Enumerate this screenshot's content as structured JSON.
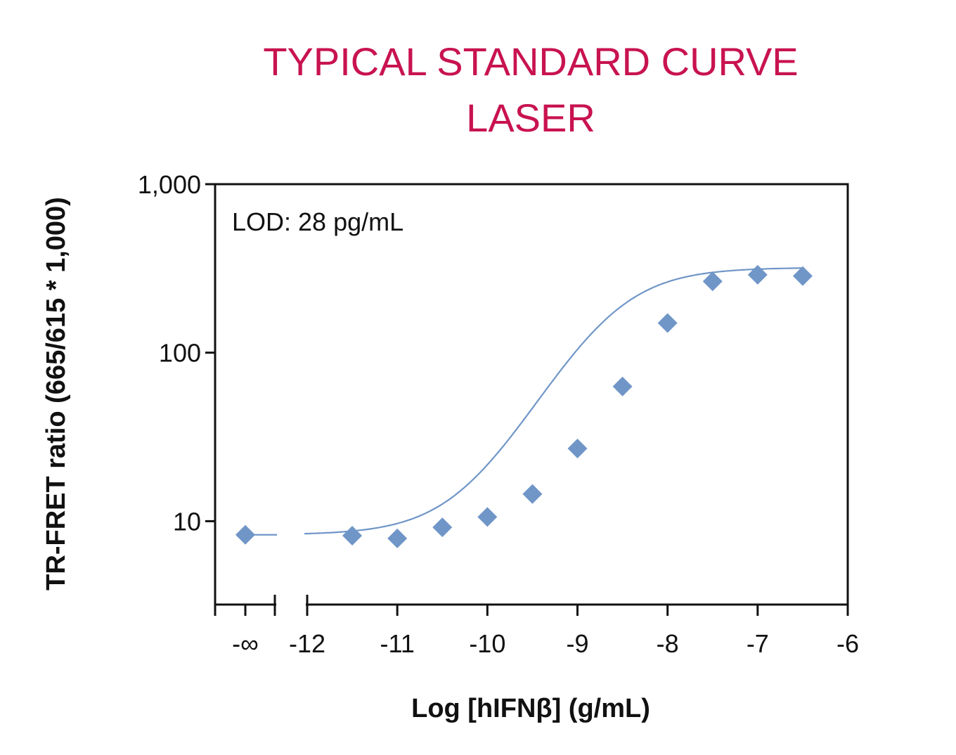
{
  "chart_data": {
    "type": "scatter",
    "title_line1": "TYPICAL STANDARD CURVE",
    "title_line2": "LASER",
    "xlabel": "Log [hIFNβ] (g/mL)",
    "ylabel": "TR-FRET ratio (665/615 * 1,000)",
    "annotation": "LOD: 28 pg/mL",
    "yscale": "log",
    "ylim": [
      3.2,
      1000
    ],
    "xlim": [
      -12.35,
      -6
    ],
    "y_ticks": [
      {
        "value": 10,
        "label": "10"
      },
      {
        "value": 100,
        "label": "100"
      },
      {
        "value": 1000,
        "label": "1,000"
      }
    ],
    "x_ticks": [
      {
        "value": -12,
        "label": "-12"
      },
      {
        "value": -11,
        "label": "-11"
      },
      {
        "value": -10,
        "label": "-10"
      },
      {
        "value": -9,
        "label": "-9"
      },
      {
        "value": -8,
        "label": "-8"
      },
      {
        "value": -7,
        "label": "-7"
      },
      {
        "value": -6,
        "label": "-6"
      }
    ],
    "neg_inf_label": "-∞",
    "neg_inf_point": 8.3,
    "points": [
      {
        "x": -11.5,
        "y": 8.2
      },
      {
        "x": -11.0,
        "y": 7.9
      },
      {
        "x": -10.5,
        "y": 9.2
      },
      {
        "x": -10.0,
        "y": 10.6
      },
      {
        "x": -9.5,
        "y": 14.5
      },
      {
        "x": -9.0,
        "y": 27
      },
      {
        "x": -8.5,
        "y": 63
      },
      {
        "x": -8.0,
        "y": 150
      },
      {
        "x": -7.5,
        "y": 265
      },
      {
        "x": -7.0,
        "y": 290
      },
      {
        "x": -6.5,
        "y": 285
      }
    ],
    "fit": {
      "bottom": 8.3,
      "top": 320,
      "log_ec50": -8.65,
      "hill": 1.0
    },
    "grid": false,
    "marker_color": "#7096c8",
    "line_color": "#7096c8",
    "title_color": "#c8134f"
  }
}
